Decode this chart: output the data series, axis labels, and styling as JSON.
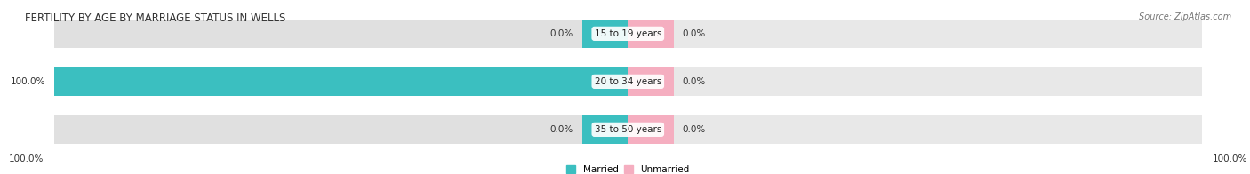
{
  "title": "FERTILITY BY AGE BY MARRIAGE STATUS IN WELLS",
  "source": "Source: ZipAtlas.com",
  "categories": [
    "15 to 19 years",
    "20 to 34 years",
    "35 to 50 years"
  ],
  "married_values": [
    0.0,
    100.0,
    0.0
  ],
  "unmarried_values": [
    0.0,
    0.0,
    0.0
  ],
  "married_color": "#3bbfc0",
  "unmarried_color": "#f5aec0",
  "bar_bg_left_color": "#e0e0e0",
  "bar_bg_right_color": "#e8e8e8",
  "bar_height": 0.6,
  "figsize": [
    14.06,
    1.96
  ],
  "dpi": 100,
  "legend_married": "Married",
  "legend_unmarried": "Unmarried",
  "left_footer_label": "100.0%",
  "right_footer_label": "100.0%",
  "title_fontsize": 8.5,
  "label_fontsize": 7.5,
  "source_fontsize": 7,
  "max_val": 100,
  "small_bar_width": 8
}
